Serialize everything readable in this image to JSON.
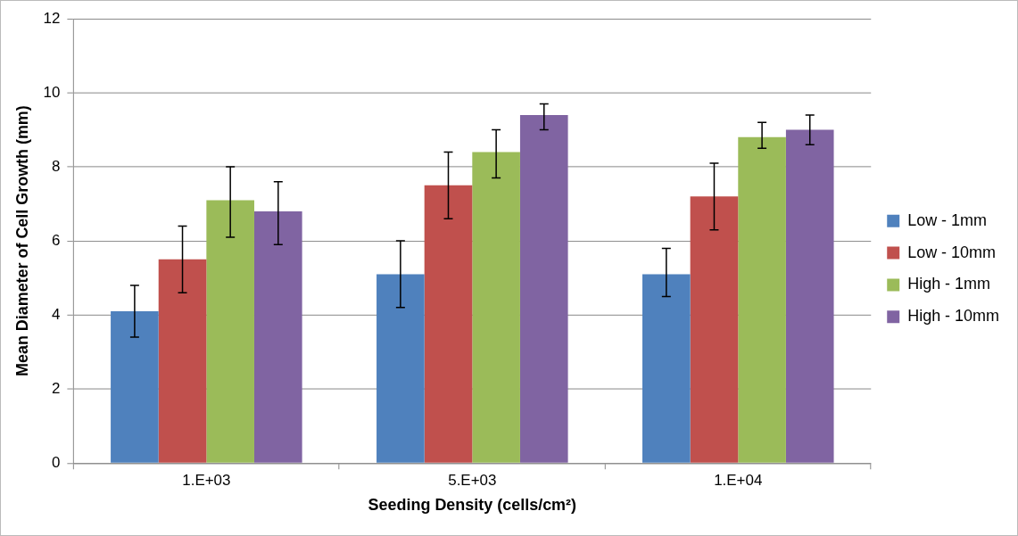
{
  "chart_data": {
    "type": "bar",
    "xlabel": "Seeding Density (cells/cm²)",
    "ylabel": "Mean Diameter of Cell Growth (mm)",
    "categories": [
      "1.E+03",
      "5.E+03",
      "1.E+04"
    ],
    "series": [
      {
        "name": "Low - 1mm",
        "color": "#4f81bd",
        "values": [
          4.1,
          5.1,
          5.1
        ],
        "errors": [
          [
            3.4,
            4.8
          ],
          [
            4.2,
            6.0
          ],
          [
            4.5,
            5.8
          ]
        ]
      },
      {
        "name": "Low - 10mm",
        "color": "#c0504d",
        "values": [
          5.5,
          7.5,
          7.2
        ],
        "errors": [
          [
            4.6,
            6.4
          ],
          [
            6.6,
            8.4
          ],
          [
            6.3,
            8.1
          ]
        ]
      },
      {
        "name": "High - 1mm",
        "color": "#9bbb59",
        "values": [
          7.1,
          8.4,
          8.8
        ],
        "errors": [
          [
            6.1,
            8.0
          ],
          [
            7.7,
            9.0
          ],
          [
            8.5,
            9.2
          ]
        ]
      },
      {
        "name": "High - 10mm",
        "color": "#8064a2",
        "values": [
          6.8,
          9.4,
          9.0
        ],
        "errors": [
          [
            5.9,
            7.6
          ],
          [
            9.0,
            9.7
          ],
          [
            8.6,
            9.4
          ]
        ]
      }
    ],
    "ylim": [
      0,
      12
    ],
    "yticks": [
      0,
      2,
      4,
      6,
      8,
      10,
      12
    ],
    "grid": "y",
    "legend": "right"
  }
}
